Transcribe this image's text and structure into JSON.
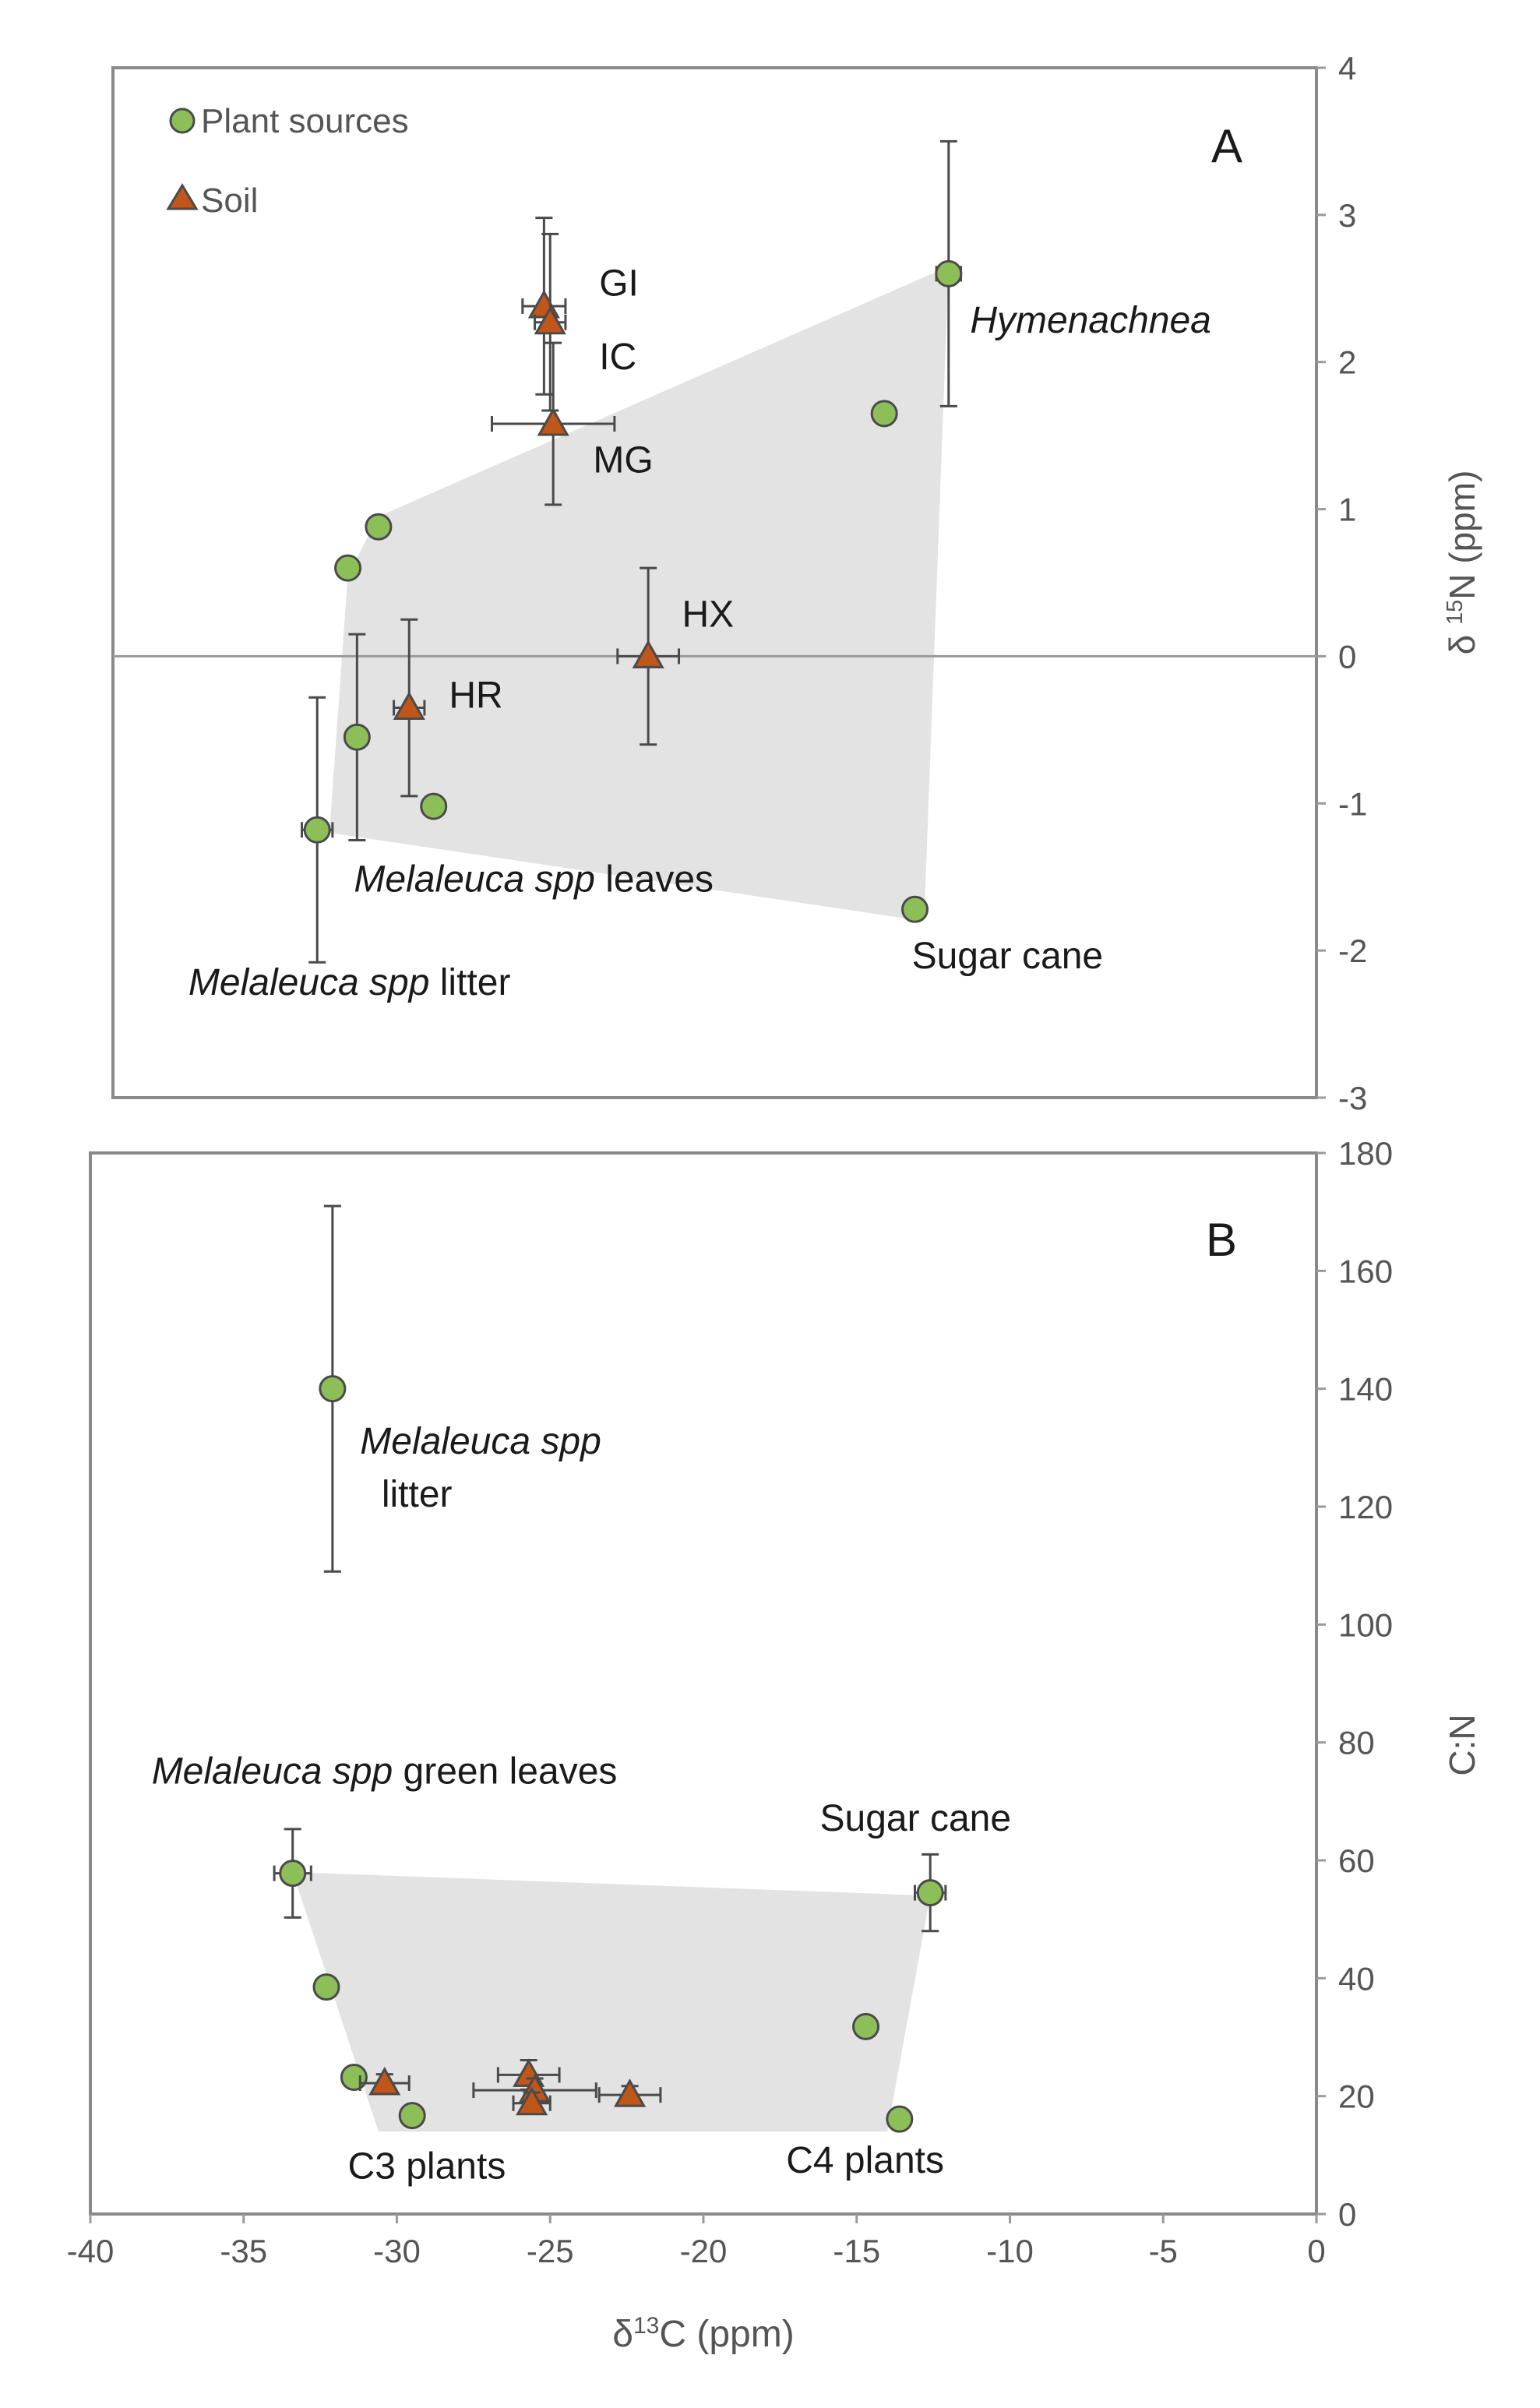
{
  "colors": {
    "plant_fill": "#8dbf58",
    "soil_fill": "#c0561a",
    "hull_fill": "#e3e3e3",
    "axis": "#9a9a9a",
    "error_bar": "#4a4a4a",
    "text": "#1a1a1a",
    "tick_text": "#555555"
  },
  "icons": {
    "plant": "green-circle-marker",
    "soil": "orange-triangle-marker"
  },
  "x_axis": {
    "label_prefix": "δ",
    "label_sup": "13",
    "label_suffix": "C (ppm)",
    "ticks": [
      "-40",
      "-35",
      "-30",
      "-25",
      "-20",
      "-15",
      "-10",
      "-5",
      "0"
    ]
  },
  "chart_data": [
    {
      "type": "scatter",
      "panel_label": "A",
      "xlim": [
        -40,
        0
      ],
      "ylim": [
        -3,
        4
      ],
      "ylabel_prefix": "δ ",
      "ylabel_sup": "15",
      "ylabel_suffix": "N (ppm)",
      "y_ticks": [
        "-3",
        "-2",
        "-1",
        "0",
        "1",
        "2",
        "3",
        "4"
      ],
      "zero_line": true,
      "legend": {
        "position": "top-left",
        "entries": [
          "Plant sources",
          "Soil"
        ]
      },
      "hull": [
        [
          -30.6,
          0.95
        ],
        [
          -12,
          2.65
        ],
        [
          -12.8,
          -1.8
        ],
        [
          -32.2,
          -1.2
        ],
        [
          -31.6,
          0.55
        ]
      ],
      "series": [
        {
          "name": "Plant sources",
          "marker": "circle",
          "points": [
            {
              "x": -12.0,
              "y": 2.6,
              "xerr": 0.4,
              "yerr": 0.9
            },
            {
              "x": -14.1,
              "y": 1.65
            },
            {
              "x": -30.6,
              "y": 0.88
            },
            {
              "x": -31.6,
              "y": 0.6
            },
            {
              "x": -31.3,
              "y": -0.55,
              "yerr": 0.7
            },
            {
              "x": -28.8,
              "y": -1.02
            },
            {
              "x": -32.6,
              "y": -1.18,
              "xerr": 0.5,
              "yerr": 0.9
            },
            {
              "x": -13.1,
              "y": -1.72
            }
          ]
        },
        {
          "name": "Soil",
          "marker": "triangle",
          "points": [
            {
              "x": -25.2,
              "y": 2.38,
              "xerr": 0.7,
              "yerr": 0.6
            },
            {
              "x": -25.0,
              "y": 2.27,
              "xerr": 0.5,
              "yerr": 0.6
            },
            {
              "x": -24.9,
              "y": 1.58,
              "xerr": 2.0,
              "yerr": 0.55
            },
            {
              "x": -29.6,
              "y": -0.35,
              "xerr": 0.5,
              "yerr": 0.6
            },
            {
              "x": -21.8,
              "y": 0.0,
              "xerr": 1.0,
              "yerr": 0.6
            }
          ]
        }
      ],
      "annotations": [
        {
          "text": "GI",
          "x": -23.4,
          "y": 2.45
        },
        {
          "text": "IC",
          "x": -23.4,
          "y": 1.95
        },
        {
          "text": "MG",
          "x": -23.6,
          "y": 1.25
        },
        {
          "text": "HX",
          "x": -20.7,
          "y": 0.2
        },
        {
          "text": "HR",
          "x": -28.3,
          "y": -0.35
        },
        {
          "text": "Hymenachnea",
          "x": -11.3,
          "y": 2.2,
          "italic": true
        },
        {
          "text": "Sugar cane",
          "x": -13.2,
          "y": -2.12
        },
        {
          "italic_part": "Melaleuca spp",
          "plain_part": " leaves",
          "x": -31.4,
          "y": -1.6
        },
        {
          "italic_part": "Melaleuca spp",
          "plain_part": " litter",
          "x": -36.8,
          "y": -2.3
        }
      ]
    },
    {
      "type": "scatter",
      "panel_label": "B",
      "xlim": [
        -40,
        0
      ],
      "ylim": [
        0,
        180
      ],
      "ylabel": "C:N",
      "y_ticks": [
        "0",
        "20",
        "40",
        "60",
        "80",
        "100",
        "120",
        "140",
        "160",
        "180"
      ],
      "hull": [
        [
          -33.4,
          58
        ],
        [
          -12.6,
          54
        ],
        [
          -14.0,
          14
        ],
        [
          -30.6,
          14
        ]
      ],
      "series": [
        {
          "name": "Plant sources",
          "marker": "circle",
          "points": [
            {
              "x": -32.1,
              "y": 140,
              "yerr": 31
            },
            {
              "x": -33.4,
              "y": 57.8,
              "xerr": 0.6,
              "yerr": 7.5
            },
            {
              "x": -12.6,
              "y": 54.5,
              "xerr": 0.5,
              "yerr": 6.5
            },
            {
              "x": -32.3,
              "y": 38.5
            },
            {
              "x": -14.7,
              "y": 31.8
            },
            {
              "x": -31.4,
              "y": 23.2
            },
            {
              "x": -29.5,
              "y": 16.7
            },
            {
              "x": -13.6,
              "y": 16.1
            }
          ]
        },
        {
          "name": "Soil",
          "marker": "triangle",
          "points": [
            {
              "x": -30.4,
              "y": 22.2,
              "xerr": 0.8,
              "yerr": 1.5
            },
            {
              "x": -25.7,
              "y": 23.6,
              "xerr": 1.0,
              "yerr": 2.5
            },
            {
              "x": -25.5,
              "y": 21.0,
              "xerr": 2.0,
              "yerr": 2.0
            },
            {
              "x": -25.6,
              "y": 18.8,
              "xerr": 0.6,
              "yerr": 1.8
            },
            {
              "x": -22.4,
              "y": 20.2,
              "xerr": 1.0,
              "yerr": 1.5
            }
          ]
        }
      ],
      "annotations": [
        {
          "italic_part": "Melaleuca spp",
          "plain_part": "",
          "x": -31.2,
          "y": 129
        },
        {
          "text": "litter",
          "x": -30.5,
          "y": 120
        },
        {
          "italic_part": "Melaleuca spp",
          "plain_part": " green leaves",
          "x": -38.0,
          "y": 73
        },
        {
          "text": "Sugar cane",
          "x": -16.2,
          "y": 65
        },
        {
          "text": "C3 plants",
          "x": -31.6,
          "y": 6
        },
        {
          "text": "C4 plants",
          "x": -17.3,
          "y": 7
        }
      ]
    }
  ]
}
